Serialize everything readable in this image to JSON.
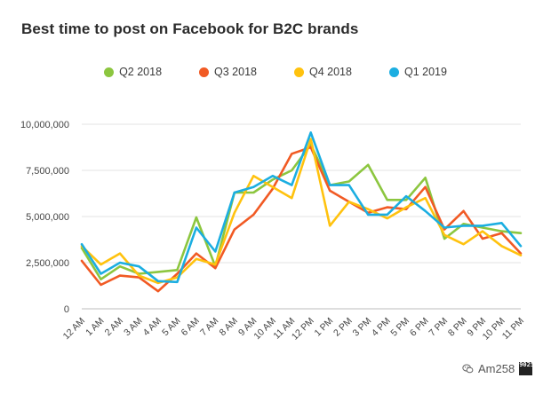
{
  "chart_data": {
    "type": "line",
    "title": "Best time to post on Facebook for B2C brands",
    "xlabel": "",
    "ylabel": "",
    "categories": [
      "12 AM",
      "1 AM",
      "2 AM",
      "3 AM",
      "4 AM",
      "5 AM",
      "6 AM",
      "7 AM",
      "8 AM",
      "9 AM",
      "10 AM",
      "11 AM",
      "12 PM",
      "1 PM",
      "2 PM",
      "3 PM",
      "4 PM",
      "5 PM",
      "6 PM",
      "7 PM",
      "8 PM",
      "9 PM",
      "10 PM",
      "11 PM"
    ],
    "ylim": [
      0,
      10000000
    ],
    "yticks": [
      0,
      2500000,
      5000000,
      7500000,
      10000000
    ],
    "ytick_labels": [
      "0",
      "2,500,000",
      "5,000,000",
      "7,500,000",
      "10,000,000"
    ],
    "grid": "horizontal",
    "legend_position": "top-center",
    "series": [
      {
        "name": "Q2 2018",
        "color": "#8cc63f",
        "values": [
          3300000,
          1600000,
          2300000,
          1900000,
          2000000,
          2100000,
          4950000,
          2300000,
          6300000,
          6300000,
          7000000,
          7500000,
          8900000,
          6700000,
          6900000,
          7800000,
          5900000,
          5900000,
          7100000,
          3800000,
          4600000,
          4400000,
          4200000,
          4100000
        ]
      },
      {
        "name": "Q3 2018",
        "color": "#f15a24",
        "values": [
          2600000,
          1300000,
          1800000,
          1700000,
          950000,
          1900000,
          3000000,
          2200000,
          4300000,
          5100000,
          6500000,
          8400000,
          8750000,
          6400000,
          5800000,
          5200000,
          5500000,
          5400000,
          6600000,
          4300000,
          5300000,
          3800000,
          4100000,
          3000000
        ]
      },
      {
        "name": "Q4 2018",
        "color": "#ffc20e",
        "values": [
          3400000,
          2400000,
          3000000,
          1800000,
          1400000,
          1700000,
          2700000,
          2400000,
          5200000,
          7200000,
          6600000,
          6000000,
          9200000,
          4500000,
          5800000,
          5400000,
          4900000,
          5500000,
          6000000,
          4000000,
          3500000,
          4200000,
          3400000,
          2900000
        ]
      },
      {
        "name": "Q1 2019",
        "color": "#1baee1",
        "values": [
          3500000,
          1900000,
          2500000,
          2300000,
          1500000,
          1450000,
          4400000,
          3100000,
          6300000,
          6600000,
          7200000,
          6700000,
          9550000,
          6700000,
          6700000,
          5100000,
          5100000,
          6100000,
          5300000,
          4400000,
          4500000,
          4500000,
          4650000,
          3400000
        ]
      }
    ]
  },
  "watermark": {
    "text": "Am258",
    "logo_text": "9025"
  }
}
